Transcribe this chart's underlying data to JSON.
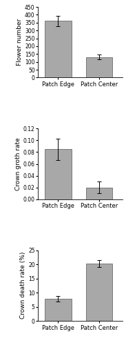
{
  "chart1": {
    "categories": [
      "Patch Edge",
      "Patch Center"
    ],
    "values": [
      360,
      130
    ],
    "errors": [
      35,
      15
    ],
    "ylabel": "Flower number",
    "ylim": [
      0,
      450
    ],
    "yticks": [
      0,
      50,
      100,
      150,
      200,
      250,
      300,
      350,
      400,
      450
    ]
  },
  "chart2": {
    "categories": [
      "Patch Edge",
      "Patch Center"
    ],
    "values": [
      0.085,
      0.02
    ],
    "errors": [
      0.018,
      0.01
    ],
    "ylabel": "Crown groth rate",
    "ylim": [
      0,
      0.12
    ],
    "yticks": [
      0,
      0.02,
      0.04,
      0.06,
      0.08,
      0.1,
      0.12
    ]
  },
  "chart3": {
    "categories": [
      "Patch Edge",
      "Patch Center"
    ],
    "values": [
      7.8,
      20.2
    ],
    "errors": [
      1.0,
      1.2
    ],
    "ylabel": "Crown death rate (%)",
    "ylim": [
      0,
      25
    ],
    "yticks": [
      0,
      5,
      10,
      15,
      20,
      25
    ]
  },
  "bar_color": "#a8a8a8",
  "bar_edgecolor": "#555555",
  "bar_width": 0.45,
  "capsize": 2,
  "tick_fontsize": 5.5,
  "label_fontsize": 6.5,
  "xticklabel_fontsize": 6.0
}
